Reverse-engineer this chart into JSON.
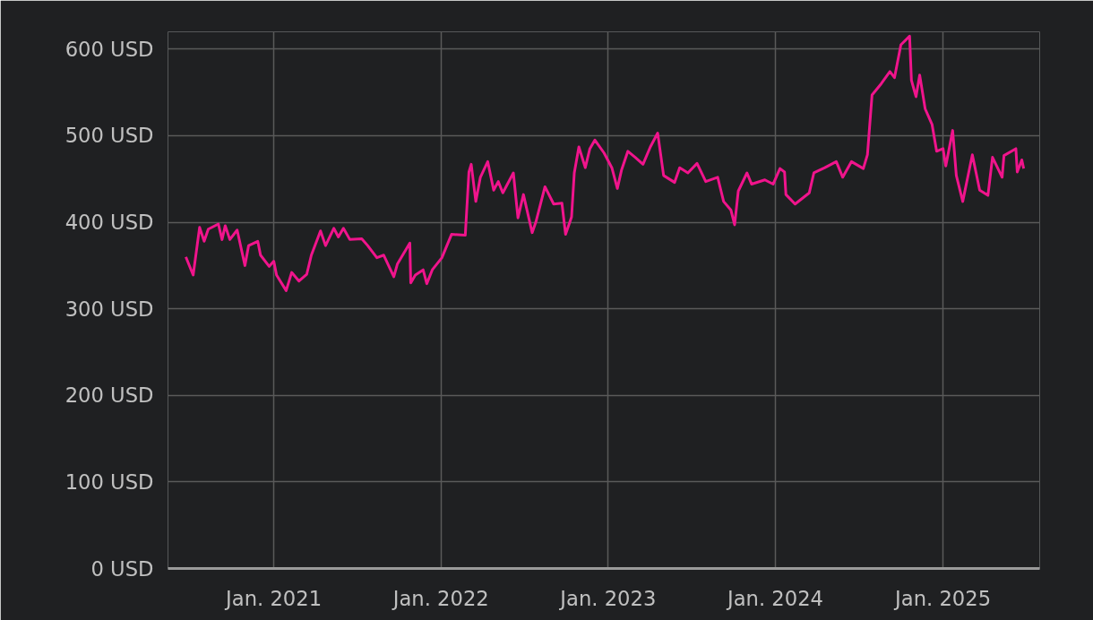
{
  "chart_data": {
    "type": "line",
    "x": [
      "2020-06-23",
      "2020-07-09",
      "2020-07-23",
      "2020-08-02",
      "2020-08-11",
      "2020-09-02",
      "2020-09-10",
      "2020-09-17",
      "2020-09-27",
      "2020-10-13",
      "2020-10-30",
      "2020-11-07",
      "2020-11-27",
      "2020-12-03",
      "2020-12-22",
      "2021-01-01",
      "2021-01-07",
      "2021-01-28",
      "2021-02-09",
      "2021-02-25",
      "2021-03-14",
      "2021-03-24",
      "2021-04-13",
      "2021-04-24",
      "2021-05-12",
      "2021-05-22",
      "2021-06-02",
      "2021-06-16",
      "2021-07-12",
      "2021-07-25",
      "2021-08-14",
      "2021-08-29",
      "2021-09-20",
      "2021-09-28",
      "2021-10-25",
      "2021-10-27",
      "2021-11-06",
      "2021-11-23",
      "2021-12-01",
      "2021-12-13",
      "2022-01-03",
      "2022-01-24",
      "2022-02-23",
      "2022-03-03",
      "2022-03-08",
      "2022-03-18",
      "2022-03-28",
      "2022-04-13",
      "2022-04-26",
      "2022-05-06",
      "2022-05-16",
      "2022-06-08",
      "2022-06-18",
      "2022-06-30",
      "2022-07-19",
      "2022-07-27",
      "2022-08-16",
      "2022-09-04",
      "2022-09-22",
      "2022-09-30",
      "2022-10-13",
      "2022-10-19",
      "2022-10-29",
      "2022-11-12",
      "2022-11-22",
      "2022-12-03",
      "2022-12-23",
      "2023-01-09",
      "2023-01-21",
      "2023-01-30",
      "2023-02-13",
      "2023-03-01",
      "2023-03-18",
      "2023-04-03",
      "2023-04-19",
      "2023-05-02",
      "2023-05-26",
      "2023-06-06",
      "2023-06-24",
      "2023-07-14",
      "2023-08-02",
      "2023-08-28",
      "2023-09-10",
      "2023-09-26",
      "2023-10-04",
      "2023-10-12",
      "2023-10-31",
      "2023-11-10",
      "2023-12-09",
      "2023-12-27",
      "2024-01-11",
      "2024-01-21",
      "2024-01-24",
      "2024-02-13",
      "2024-03-15",
      "2024-03-25",
      "2024-04-18",
      "2024-05-13",
      "2024-05-27",
      "2024-06-15",
      "2024-07-11",
      "2024-07-20",
      "2024-07-30",
      "2024-08-19",
      "2024-09-07",
      "2024-09-17",
      "2024-10-01",
      "2024-10-20",
      "2024-10-24",
      "2024-11-03",
      "2024-11-11",
      "2024-11-23",
      "2024-12-08",
      "2024-12-18",
      "2025-01-01",
      "2025-01-07",
      "2025-01-22",
      "2025-01-30",
      "2025-02-13",
      "2025-03-06",
      "2025-03-22",
      "2025-04-09",
      "2025-04-19",
      "2025-05-10",
      "2025-05-14",
      "2025-06-09",
      "2025-06-12",
      "2025-06-22",
      "2025-06-26"
    ],
    "series": [
      {
        "color": "#f0148c",
        "values": [
          360,
          339,
          394,
          378,
          392,
          398,
          380,
          396,
          380,
          391,
          350,
          373,
          378,
          362,
          349,
          355,
          339,
          321,
          342,
          332,
          340,
          362,
          390,
          373,
          393,
          383,
          393,
          380,
          381,
          373,
          359,
          362,
          337,
          352,
          376,
          330,
          339,
          345,
          329,
          345,
          359,
          386,
          385,
          458,
          467,
          424,
          452,
          470,
          437,
          447,
          434,
          457,
          405,
          432,
          388,
          400,
          441,
          421,
          422,
          386,
          406,
          457,
          487,
          463,
          485,
          495,
          480,
          463,
          439,
          460,
          482,
          475,
          467,
          487,
          503,
          454,
          446,
          463,
          457,
          468,
          447,
          452,
          424,
          414,
          397,
          436,
          457,
          444,
          449,
          444,
          462,
          458,
          432,
          421,
          434,
          457,
          463,
          470,
          452,
          470,
          462,
          478,
          547,
          560,
          574,
          567,
          605,
          615,
          564,
          545,
          570,
          531,
          513,
          482,
          485,
          465,
          506,
          454,
          424,
          478,
          437,
          431,
          475,
          452,
          477,
          485,
          458,
          472,
          462
        ]
      }
    ],
    "xlim": [
      "2020-05-15",
      "2025-07-31"
    ],
    "xticks": [
      {
        "value": "2021-01-01",
        "label": "Jan. 2021"
      },
      {
        "value": "2022-01-01",
        "label": "Jan. 2022"
      },
      {
        "value": "2023-01-01",
        "label": "Jan. 2023"
      },
      {
        "value": "2024-01-01",
        "label": "Jan. 2024"
      },
      {
        "value": "2025-01-01",
        "label": "Jan. 2025"
      }
    ],
    "ylim": [
      0,
      620
    ],
    "yticks": [
      {
        "value": 0,
        "label": "0 USD"
      },
      {
        "value": 100,
        "label": "100 USD"
      },
      {
        "value": 200,
        "label": "200 USD"
      },
      {
        "value": 300,
        "label": "300 USD"
      },
      {
        "value": 400,
        "label": "400 USD"
      },
      {
        "value": 500,
        "label": "500 USD"
      },
      {
        "value": 600,
        "label": "600 USD"
      }
    ],
    "grid": true,
    "line_style": "solid"
  }
}
